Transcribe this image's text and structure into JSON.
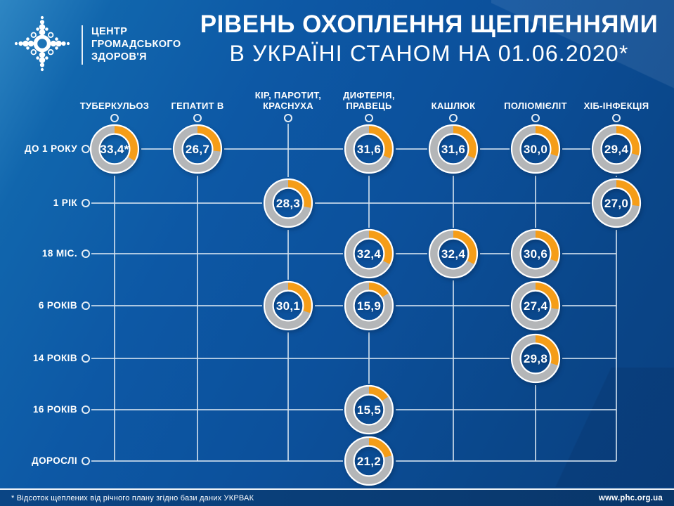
{
  "header": {
    "logo_text": "ЦЕНТР\nГРОМАДСЬКОГО\nЗДОРОВ'Я",
    "title_line1": "РІВЕНЬ ОХОПЛЕННЯ ЩЕПЛЕННЯМИ",
    "title_line2": "В УКРАЇНІ СТАНОМ НА 01.06.2020*"
  },
  "footer": {
    "note": "* Відсоток щеплених від річного плану згідно бази даних УКРВАК",
    "url": "www.phc.org.ua"
  },
  "colors": {
    "background_top": "#2E86C3",
    "background_main": "#0D58A5",
    "background_bottom": "#0A4080",
    "footer_bg": "#0A3C74",
    "ring_gray": "#B4B6B8",
    "arc_orange": "#F59D18",
    "grid_line": "#D6E3F0",
    "text_white": "#FFFFFF"
  },
  "chart_data": {
    "type": "matrix-donut",
    "unit": "% виконання річного плану",
    "columns": [
      "ТУБЕРКУЛЬОЗ",
      "ГЕПАТИТ В",
      "КІР, ПАРОТИТ,\nКРАСНУХА",
      "ДИФТЕРІЯ,\nПРАВЕЦЬ",
      "КАШЛЮК",
      "ПОЛІОМІЄЛІТ",
      "ХІБ-ІНФЕКЦІЯ"
    ],
    "rows": [
      "ДО 1 РОКУ",
      "1 РІК",
      "18 МІС.",
      "6 РОКІВ",
      "14 РОКІВ",
      "16 РОКІВ",
      "ДОРОСЛІ"
    ],
    "cells": [
      {
        "row": 0,
        "col": 0,
        "value": 33.4,
        "label": "33,4*"
      },
      {
        "row": 0,
        "col": 1,
        "value": 26.7,
        "label": "26,7"
      },
      {
        "row": 0,
        "col": 3,
        "value": 31.6,
        "label": "31,6"
      },
      {
        "row": 0,
        "col": 4,
        "value": 31.6,
        "label": "31,6"
      },
      {
        "row": 0,
        "col": 5,
        "value": 30.0,
        "label": "30,0"
      },
      {
        "row": 0,
        "col": 6,
        "value": 29.4,
        "label": "29,4"
      },
      {
        "row": 1,
        "col": 2,
        "value": 28.3,
        "label": "28,3"
      },
      {
        "row": 1,
        "col": 6,
        "value": 27.0,
        "label": "27,0"
      },
      {
        "row": 2,
        "col": 3,
        "value": 32.4,
        "label": "32,4"
      },
      {
        "row": 2,
        "col": 4,
        "value": 32.4,
        "label": "32,4"
      },
      {
        "row": 2,
        "col": 5,
        "value": 30.6,
        "label": "30,6"
      },
      {
        "row": 3,
        "col": 2,
        "value": 30.1,
        "label": "30,1"
      },
      {
        "row": 3,
        "col": 3,
        "value": 15.9,
        "label": "15,9"
      },
      {
        "row": 3,
        "col": 5,
        "value": 27.4,
        "label": "27,4"
      },
      {
        "row": 4,
        "col": 5,
        "value": 29.8,
        "label": "29,8"
      },
      {
        "row": 5,
        "col": 3,
        "value": 15.5,
        "label": "15,5"
      },
      {
        "row": 6,
        "col": 3,
        "value": 21.2,
        "label": "21,2"
      }
    ]
  }
}
